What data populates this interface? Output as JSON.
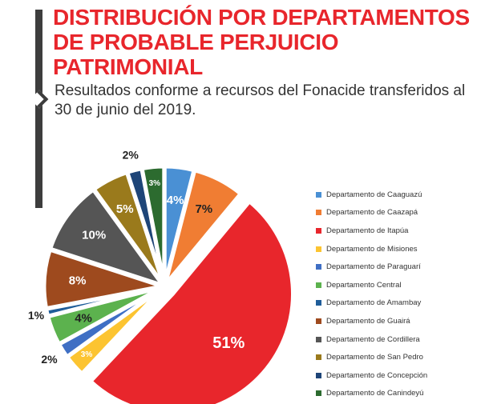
{
  "title": "DISTRIBUCIÓN POR DEPARTAMENTOS DE PROBABLE PERJUICIO PATRIMONIAL",
  "subtitle": "Resultados conforme a recursos del Fonacide transferidos al 30 de junio del 2019.",
  "chart_data": {
    "type": "pie",
    "legend_position": "right",
    "slices": [
      {
        "name": "Departamento de Caaguazú",
        "value": 4,
        "label": "4%",
        "color": "#4a90d4"
      },
      {
        "name": "Departamento de Caazapá",
        "value": 7,
        "label": "7%",
        "color": "#f07d33"
      },
      {
        "name": "Departamento de Itapúa",
        "value": 51,
        "label": "51%",
        "color": "#e8262c"
      },
      {
        "name": "Departamento de Misiones",
        "value": 3,
        "label": "3%",
        "color": "#fcc431"
      },
      {
        "name": "Departamento de Paraguarí",
        "value": 2,
        "label": "2%",
        "color": "#3f6fc4"
      },
      {
        "name": "Departamento Central",
        "value": 4,
        "label": "4%",
        "color": "#5cb24e"
      },
      {
        "name": "Departamento de Amambay",
        "value": 1,
        "label": "1%",
        "color": "#1f5d99"
      },
      {
        "name": "Departamento de Guairá",
        "value": 8,
        "label": "8%",
        "color": "#9e4a1e"
      },
      {
        "name": "Departamento de Cordillera",
        "value": 10,
        "label": "10%",
        "color": "#555555"
      },
      {
        "name": "Departamento de San Pedro",
        "value": 5,
        "label": "5%",
        "color": "#9a7a1c"
      },
      {
        "name": "Departamento de Concepción",
        "value": 2,
        "label": "2%",
        "color": "#1e4578"
      },
      {
        "name": "Departamento de Canindeyú",
        "value": 3,
        "label": "3%",
        "color": "#2c6b2f"
      }
    ]
  }
}
